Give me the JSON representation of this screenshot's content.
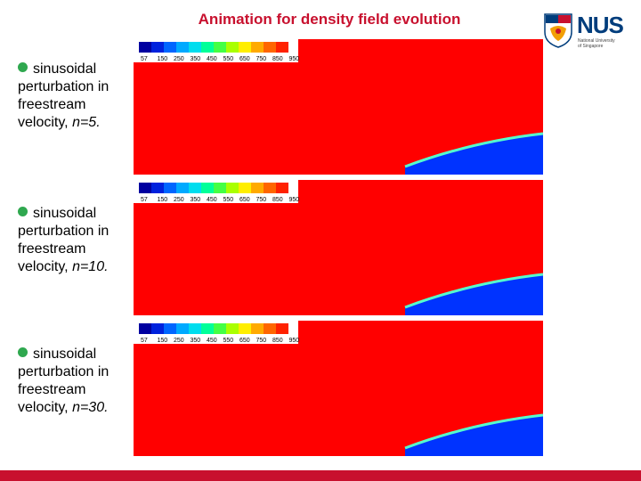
{
  "slide": {
    "title": "Animation for density field evolution"
  },
  "logo": {
    "wordmark": "NUS",
    "subtitle_line1": "National University",
    "subtitle_line2": "of Singapore"
  },
  "panels": [
    {
      "label_text": "sinusoidal perturbation in freestream velocity, ",
      "n_text": "n=5."
    },
    {
      "label_text": "sinusoidal perturbation in freestream velocity, ",
      "n_text": "n=10."
    },
    {
      "label_text": "sinusoidal perturbation in freestream velocity, ",
      "n_text": "n=30."
    }
  ],
  "colorbar": {
    "tick_labels": [
      "57",
      "150",
      "250",
      "350",
      "450",
      "550",
      "650",
      "750",
      "850",
      "950"
    ]
  },
  "colors": {
    "field": "#ff0000",
    "body": "#0033ff",
    "accent": "#c8102e",
    "bullet": "#2fa84f"
  }
}
